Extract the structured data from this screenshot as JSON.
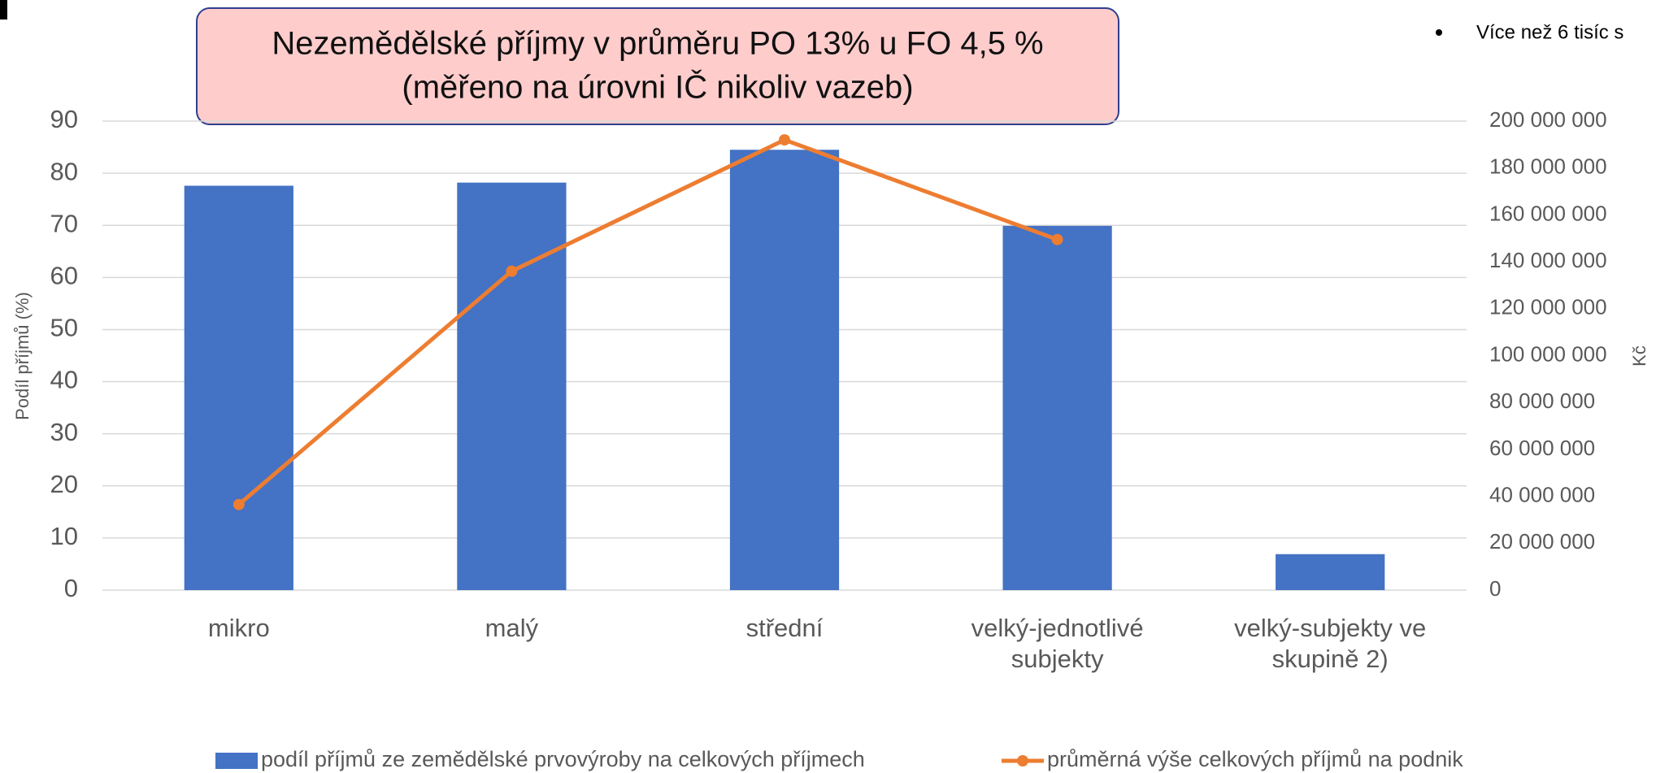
{
  "chart_data": {
    "type": "bar_line",
    "title": "Nezemědělské příjmy v průměru PO 13% u FO 4,5 %",
    "subtitle": "(měřeno na úrovni IČ nikoliv vazeb)",
    "annotation": "Více než 6 tisíc s",
    "ylabel": "Podíl příjmů (%)",
    "y2label": "Kč",
    "categories": [
      "mikro",
      "malý",
      "střední",
      "velký-jednotlivé subjekty",
      "velký-subjekty ve skupině 2)"
    ],
    "series": [
      {
        "name": "podíl příjmů ze zemědělské prvovýroby na celkových příjmech",
        "color": "#4472c4",
        "type": "bar",
        "values": [
          77.6,
          78.2,
          84.5,
          69.9,
          6.9
        ]
      },
      {
        "name": "průměrná výše celkových příjmů na podnik",
        "color": "#ed7d31",
        "type": "line",
        "axis": "y2",
        "values": [
          36500000,
          136000000,
          192000000,
          149500000,
          null
        ]
      }
    ],
    "ylim": [
      0,
      90
    ],
    "yticks": [
      0,
      10,
      20,
      30,
      40,
      50,
      60,
      70,
      80,
      90
    ],
    "y2lim": [
      0,
      200000000
    ],
    "y2ticks": [
      0,
      {
        "value": 20000000,
        "label": "20 000 000"
      },
      {
        "value": 40000000,
        "label": "40 000 000"
      },
      {
        "value": 60000000,
        "label": "60 000 000"
      },
      {
        "value": 80000000,
        "label": "80 000 000"
      },
      {
        "value": 100000000,
        "label": "100 000 000"
      },
      {
        "value": 120000000,
        "label": "120 000 000"
      },
      {
        "value": 140000000,
        "label": "140 000 000"
      },
      {
        "value": 160000000,
        "label": "160 000 000"
      },
      {
        "value": 180000000,
        "label": "180 000 000"
      },
      {
        "value": 200000000,
        "label": "200 000 000"
      }
    ],
    "grid": true,
    "legend": "bottom"
  }
}
